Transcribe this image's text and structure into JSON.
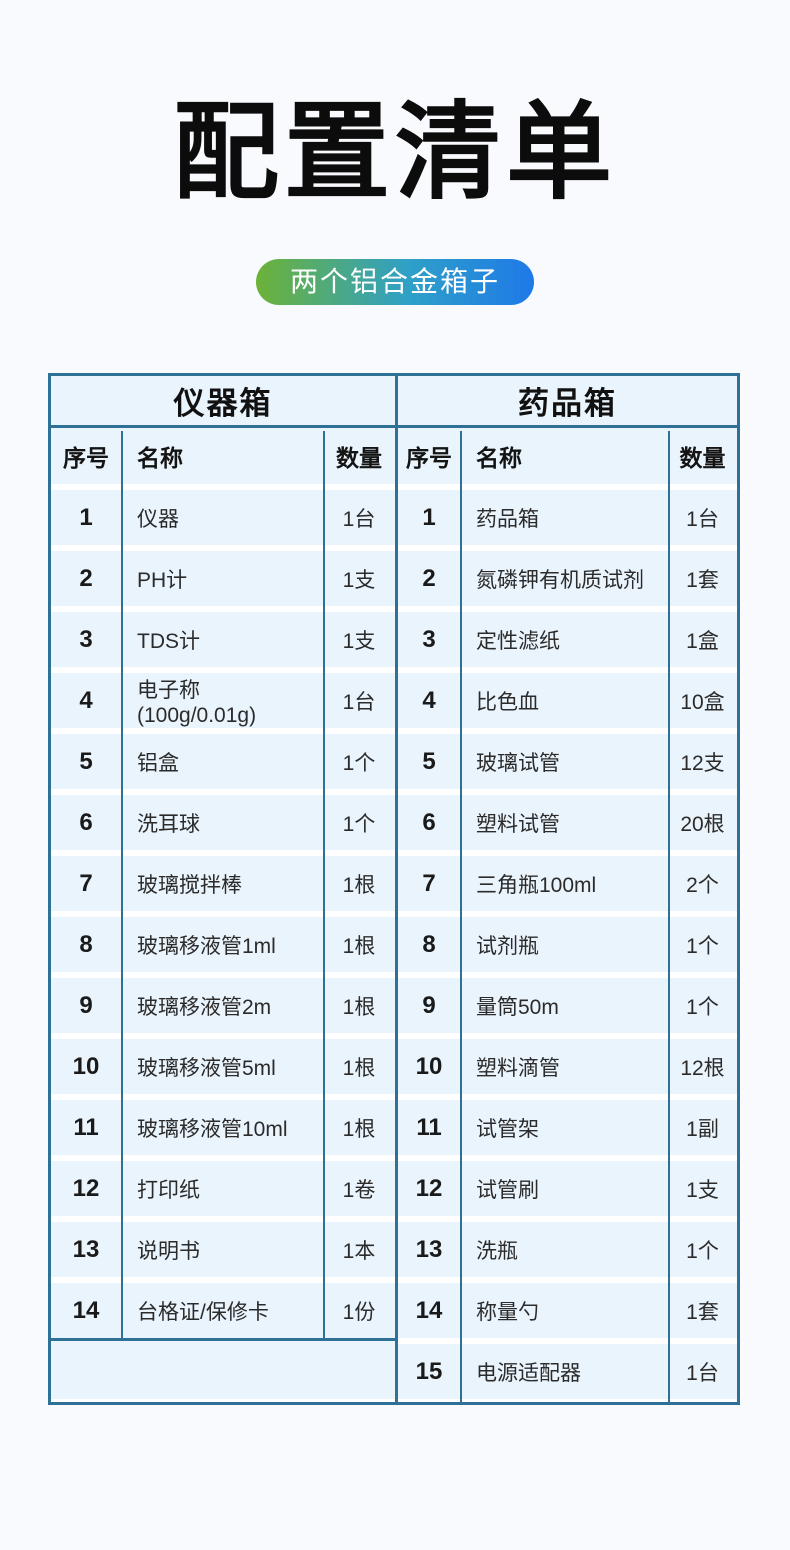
{
  "header": {
    "title": "配置清单",
    "badge": "两个铝合金箱子"
  },
  "columns": {
    "no": "序号",
    "name": "名称",
    "qty": "数量"
  },
  "tables": [
    {
      "title": "仪器箱",
      "rows": [
        {
          "no": "1",
          "name": "仪器",
          "qty": "1台"
        },
        {
          "no": "2",
          "name": "PH计",
          "qty": "1支"
        },
        {
          "no": "3",
          "name": "TDS计",
          "qty": "1支"
        },
        {
          "no": "4",
          "name": "电子称 (100g/0.01g)",
          "qty": "1台"
        },
        {
          "no": "5",
          "name": "铝盒",
          "qty": "1个"
        },
        {
          "no": "6",
          "name": "洗耳球",
          "qty": "1个"
        },
        {
          "no": "7",
          "name": "玻璃搅拌棒",
          "qty": "1根"
        },
        {
          "no": "8",
          "name": "玻璃移液管1ml",
          "qty": "1根"
        },
        {
          "no": "9",
          "name": "玻璃移液管2m",
          "qty": "1根"
        },
        {
          "no": "10",
          "name": "玻璃移液管5ml",
          "qty": "1根"
        },
        {
          "no": "11",
          "name": "玻璃移液管10ml",
          "qty": "1根"
        },
        {
          "no": "12",
          "name": "打印纸",
          "qty": "1卷"
        },
        {
          "no": "13",
          "name": "说明书",
          "qty": "1本"
        },
        {
          "no": "14",
          "name": "台格证/保修卡",
          "qty": "1份"
        }
      ]
    },
    {
      "title": "药品箱",
      "rows": [
        {
          "no": "1",
          "name": "药品箱",
          "qty": "1台"
        },
        {
          "no": "2",
          "name": "氮磷钾有机质试剂",
          "qty": "1套"
        },
        {
          "no": "3",
          "name": "定性滤纸",
          "qty": "1盒"
        },
        {
          "no": "4",
          "name": "比色血",
          "qty": "10盒"
        },
        {
          "no": "5",
          "name": "玻璃试管",
          "qty": "12支"
        },
        {
          "no": "6",
          "name": "塑料试管",
          "qty": "20根"
        },
        {
          "no": "7",
          "name": "三角瓶100ml",
          "qty": "2个"
        },
        {
          "no": "8",
          "name": "试剂瓶",
          "qty": "1个"
        },
        {
          "no": "9",
          "name": "量筒50m",
          "qty": "1个"
        },
        {
          "no": "10",
          "name": "塑料滴管",
          "qty": "12根"
        },
        {
          "no": "11",
          "name": "试管架",
          "qty": "1副"
        },
        {
          "no": "12",
          "name": "试管刷",
          "qty": "1支"
        },
        {
          "no": "13",
          "name": "洗瓶",
          "qty": "1个"
        },
        {
          "no": "14",
          "name": "称量勺",
          "qty": "1套"
        },
        {
          "no": "15",
          "name": "电源适配器",
          "qty": "1台"
        }
      ]
    }
  ],
  "colors": {
    "page_bg": "#F8FAFD",
    "table_border": "#2E7096",
    "cell_bg": "#EAF4FC",
    "row_gap": "#FFFFFF",
    "badge_gradient_start": "#6CB237",
    "badge_gradient_mid": "#2FA0C8",
    "badge_gradient_end": "#1E79E8",
    "badge_text": "#FFFFFF",
    "title_text": "#0C0C0C"
  }
}
